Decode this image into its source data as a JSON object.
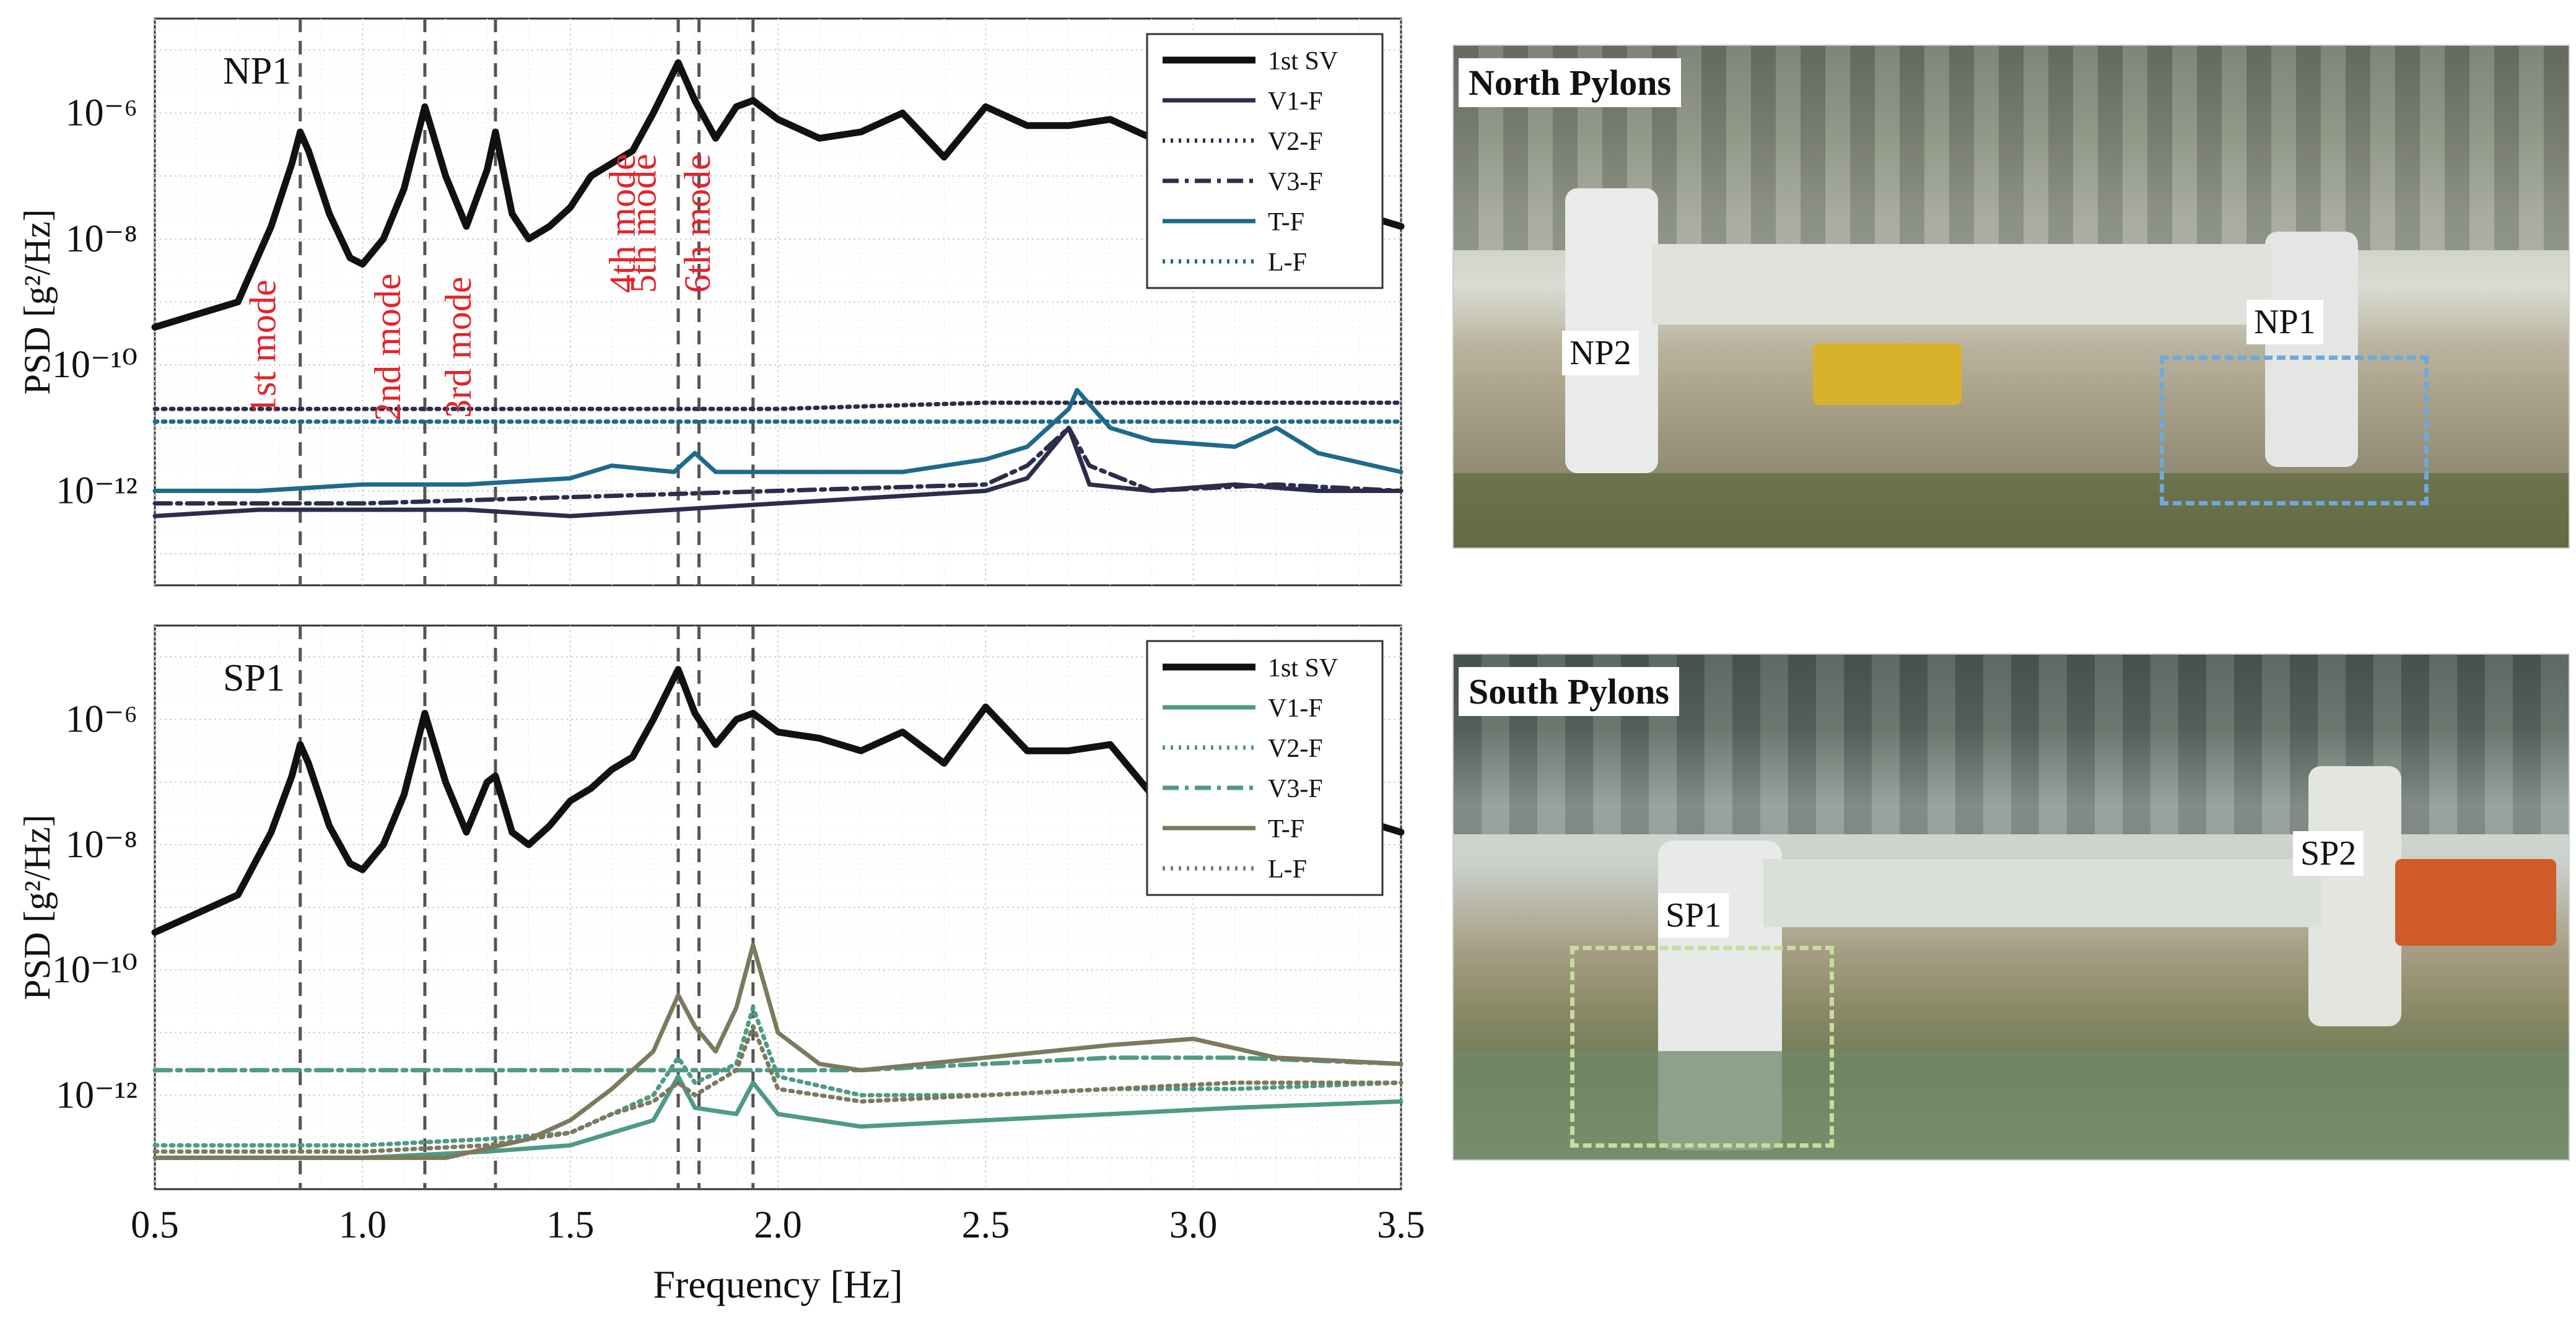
{
  "chart_data": [
    {
      "type": "line",
      "panel_label": "NP1",
      "xlabel": "",
      "ylabel": "PSD [g²/Hz]",
      "xlim": [
        0.5,
        3.5
      ],
      "ylim_log10": [
        -13.5,
        -4.5
      ],
      "yscale": "log",
      "yticks": [
        "10⁻⁶",
        "10⁻⁸",
        "10⁻¹⁰",
        "10⁻¹²"
      ],
      "grid": true,
      "legend_position": "top-right",
      "mode_lines_hz": [
        0.85,
        1.15,
        1.32,
        1.76,
        1.81,
        1.94
      ],
      "mode_labels": [
        "1st mode",
        "2nd mode",
        "3rd mode",
        "4th mode",
        "5th mode",
        "6th mode"
      ],
      "series": [
        {
          "name": "1st SV",
          "color": "#111111",
          "style": "solid",
          "x": [
            0.5,
            0.6,
            0.7,
            0.78,
            0.83,
            0.85,
            0.87,
            0.92,
            0.97,
            1.0,
            1.05,
            1.1,
            1.15,
            1.2,
            1.25,
            1.3,
            1.32,
            1.36,
            1.4,
            1.45,
            1.5,
            1.55,
            1.6,
            1.65,
            1.7,
            1.76,
            1.8,
            1.85,
            1.9,
            1.94,
            2.0,
            2.1,
            2.2,
            2.3,
            2.4,
            2.5,
            2.6,
            2.7,
            2.8,
            2.9,
            3.0,
            3.1,
            3.2,
            3.3,
            3.4,
            3.5
          ],
          "y": [
            -9.4,
            -9.2,
            -9.0,
            -7.8,
            -6.8,
            -6.3,
            -6.6,
            -7.6,
            -8.3,
            -8.4,
            -8.0,
            -7.2,
            -5.9,
            -7.0,
            -7.8,
            -6.9,
            -6.3,
            -7.6,
            -8.0,
            -7.8,
            -7.5,
            -7.0,
            -6.8,
            -6.6,
            -6.0,
            -5.2,
            -5.8,
            -6.4,
            -5.9,
            -5.8,
            -6.1,
            -6.4,
            -6.3,
            -6.0,
            -6.7,
            -5.9,
            -6.2,
            -6.2,
            -6.1,
            -6.4,
            -6.6,
            -6.8,
            -7.3,
            -7.5,
            -7.6,
            -7.8
          ]
        },
        {
          "name": "V1-F",
          "color": "#2b2d4a",
          "style": "solid",
          "x": [
            0.5,
            0.75,
            1.0,
            1.25,
            1.5,
            1.75,
            2.0,
            2.25,
            2.5,
            2.6,
            2.7,
            2.75,
            2.9,
            3.1,
            3.3,
            3.5
          ],
          "y": [
            -12.4,
            -12.3,
            -12.3,
            -12.3,
            -12.4,
            -12.3,
            -12.2,
            -12.1,
            -12.0,
            -11.8,
            -11.0,
            -11.9,
            -12.0,
            -11.9,
            -12.0,
            -12.0
          ]
        },
        {
          "name": "V2-F",
          "color": "#2b2d4a",
          "style": "dotted",
          "x": [
            0.5,
            1.0,
            1.5,
            2.0,
            2.5,
            3.0,
            3.5
          ],
          "y": [
            -10.7,
            -10.7,
            -10.7,
            -10.7,
            -10.6,
            -10.6,
            -10.6
          ]
        },
        {
          "name": "V3-F",
          "color": "#2b2d4a",
          "style": "dashdot",
          "x": [
            0.5,
            1.0,
            1.5,
            2.0,
            2.5,
            2.6,
            2.7,
            2.75,
            2.9,
            3.2,
            3.5
          ],
          "y": [
            -12.2,
            -12.2,
            -12.1,
            -12.0,
            -11.9,
            -11.6,
            -11.0,
            -11.6,
            -12.0,
            -11.9,
            -12.0
          ]
        },
        {
          "name": "T-F",
          "color": "#1d6a8c",
          "style": "solid",
          "x": [
            0.5,
            0.75,
            1.0,
            1.25,
            1.5,
            1.6,
            1.75,
            1.8,
            1.85,
            2.0,
            2.3,
            2.5,
            2.6,
            2.7,
            2.72,
            2.8,
            2.9,
            3.1,
            3.2,
            3.3,
            3.5
          ],
          "y": [
            -12.0,
            -12.0,
            -11.9,
            -11.9,
            -11.8,
            -11.6,
            -11.7,
            -11.4,
            -11.7,
            -11.7,
            -11.7,
            -11.5,
            -11.3,
            -10.7,
            -10.4,
            -11.0,
            -11.2,
            -11.3,
            -11.0,
            -11.4,
            -11.7
          ]
        },
        {
          "name": "L-F",
          "color": "#1d6a8c",
          "style": "dotted",
          "x": [
            0.5,
            1.0,
            1.5,
            2.0,
            2.5,
            3.0,
            3.5
          ],
          "y": [
            -10.9,
            -10.9,
            -10.9,
            -10.9,
            -10.9,
            -10.9,
            -10.9
          ]
        }
      ]
    },
    {
      "type": "line",
      "panel_label": "SP1",
      "xlabel": "Frequency [Hz]",
      "ylabel": "PSD [g²/Hz]",
      "xlim": [
        0.5,
        3.5
      ],
      "xticks": [
        "0.5",
        "1.0",
        "1.5",
        "2.0",
        "2.5",
        "3.0",
        "3.5"
      ],
      "ylim_log10": [
        -13.5,
        -4.5
      ],
      "yscale": "log",
      "yticks": [
        "10⁻⁶",
        "10⁻⁸",
        "10⁻¹⁰",
        "10⁻¹²"
      ],
      "grid": true,
      "legend_position": "top-right",
      "mode_lines_hz": [
        0.85,
        1.15,
        1.32,
        1.76,
        1.81,
        1.94
      ],
      "series": [
        {
          "name": "1st SV",
          "color": "#111111",
          "style": "solid",
          "x": [
            0.5,
            0.6,
            0.7,
            0.78,
            0.83,
            0.85,
            0.87,
            0.92,
            0.97,
            1.0,
            1.05,
            1.1,
            1.15,
            1.2,
            1.25,
            1.3,
            1.32,
            1.36,
            1.4,
            1.45,
            1.5,
            1.55,
            1.6,
            1.65,
            1.7,
            1.76,
            1.8,
            1.85,
            1.9,
            1.94,
            2.0,
            2.1,
            2.2,
            2.3,
            2.4,
            2.5,
            2.6,
            2.7,
            2.8,
            2.9,
            3.0,
            3.1,
            3.2,
            3.3,
            3.4,
            3.5
          ],
          "y": [
            -9.4,
            -9.1,
            -8.8,
            -7.8,
            -6.9,
            -6.4,
            -6.7,
            -7.7,
            -8.3,
            -8.4,
            -8.0,
            -7.2,
            -5.9,
            -7.0,
            -7.8,
            -7.0,
            -6.9,
            -7.8,
            -8.0,
            -7.7,
            -7.3,
            -7.1,
            -6.8,
            -6.6,
            -6.0,
            -5.2,
            -5.9,
            -6.4,
            -6.0,
            -5.9,
            -6.2,
            -6.3,
            -6.5,
            -6.2,
            -6.7,
            -5.8,
            -6.5,
            -6.5,
            -6.4,
            -7.2,
            -7.6,
            -7.6,
            -7.3,
            -7.4,
            -7.6,
            -7.8
          ]
        },
        {
          "name": "V1-F",
          "color": "#4f9a84",
          "style": "solid",
          "x": [
            0.5,
            0.8,
            1.0,
            1.3,
            1.5,
            1.6,
            1.7,
            1.76,
            1.8,
            1.9,
            1.94,
            2.0,
            2.2,
            2.5,
            2.8,
            3.1,
            3.5
          ],
          "y": [
            -13.0,
            -13.0,
            -13.0,
            -12.9,
            -12.8,
            -12.6,
            -12.4,
            -11.7,
            -12.2,
            -12.3,
            -11.8,
            -12.3,
            -12.5,
            -12.4,
            -12.3,
            -12.2,
            -12.1
          ]
        },
        {
          "name": "V2-F",
          "color": "#4f9a84",
          "style": "dotted",
          "x": [
            0.5,
            0.8,
            1.0,
            1.3,
            1.5,
            1.6,
            1.7,
            1.76,
            1.8,
            1.9,
            1.94,
            2.0,
            2.2,
            2.5,
            2.8,
            3.1,
            3.5
          ],
          "y": [
            -12.8,
            -12.8,
            -12.8,
            -12.7,
            -12.6,
            -12.3,
            -12.0,
            -11.4,
            -11.8,
            -11.5,
            -10.6,
            -11.7,
            -12.0,
            -12.0,
            -11.9,
            -11.9,
            -11.8
          ]
        },
        {
          "name": "V3-F",
          "color": "#4f9a84",
          "style": "dashdot",
          "x": [
            0.5,
            0.8,
            1.0,
            1.3,
            1.6,
            1.9,
            2.2,
            2.5,
            2.8,
            3.1,
            3.5
          ],
          "y": [
            -11.6,
            -11.6,
            -11.6,
            -11.6,
            -11.6,
            -11.6,
            -11.6,
            -11.5,
            -11.4,
            -11.4,
            -11.5
          ]
        },
        {
          "name": "T-F",
          "color": "#7b7a5e",
          "style": "solid",
          "x": [
            0.5,
            0.8,
            1.0,
            1.2,
            1.4,
            1.5,
            1.6,
            1.7,
            1.76,
            1.8,
            1.85,
            1.9,
            1.94,
            2.0,
            2.1,
            2.2,
            2.5,
            2.8,
            3.0,
            3.2,
            3.5
          ],
          "y": [
            -13.0,
            -13.0,
            -13.0,
            -13.0,
            -12.7,
            -12.4,
            -11.9,
            -11.3,
            -10.4,
            -10.9,
            -11.3,
            -10.6,
            -9.6,
            -11.0,
            -11.5,
            -11.6,
            -11.4,
            -11.2,
            -11.1,
            -11.4,
            -11.5
          ]
        },
        {
          "name": "L-F",
          "color": "#7b7a5e",
          "style": "dotted",
          "x": [
            0.5,
            0.8,
            1.0,
            1.3,
            1.5,
            1.6,
            1.7,
            1.76,
            1.8,
            1.9,
            1.94,
            2.0,
            2.2,
            2.5,
            2.8,
            3.1,
            3.5
          ],
          "y": [
            -12.9,
            -12.9,
            -12.9,
            -12.8,
            -12.6,
            -12.3,
            -12.1,
            -11.8,
            -12.0,
            -11.6,
            -10.9,
            -11.9,
            -12.1,
            -12.0,
            -11.9,
            -11.8,
            -11.8
          ]
        }
      ]
    }
  ],
  "photos": {
    "north": {
      "title": "North Pylons",
      "labels": [
        "NP2",
        "NP1"
      ],
      "box_color": "#6fa8dc"
    },
    "south": {
      "title": "South Pylons",
      "labels": [
        "SP1",
        "SP2"
      ],
      "box_color": "#c9dba0"
    }
  }
}
